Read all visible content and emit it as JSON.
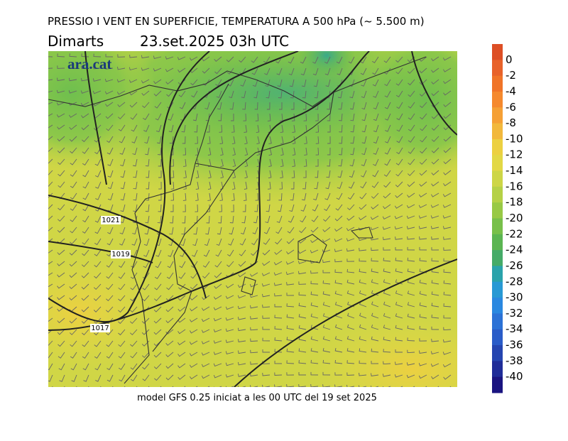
{
  "header": {
    "title": "PRESSIO I VENT EN SUPERFICIE, TEMPERATURA A 500 hPa (~ 5.500 m)",
    "day": "Dimarts",
    "date": "23.set.2025 03h UTC"
  },
  "logo": "ara.cat",
  "isobars": [
    {
      "label": 1021
    },
    {
      "label": 1019
    },
    {
      "label": 1017
    }
  ],
  "footer": "model GFS 0.25 iniciat a les 00 UTC del 19 set 2025",
  "colorbar": {
    "ticks": [
      0,
      -2,
      -4,
      -6,
      -8,
      -10,
      -12,
      -14,
      -16,
      -18,
      -20,
      -22,
      -24,
      -26,
      -28,
      -30,
      -32,
      -34,
      -36,
      -38,
      -40
    ],
    "colors": [
      "#dd4f25",
      "#e8622a",
      "#f07428",
      "#f5892e",
      "#f5a035",
      "#f2b83c",
      "#ecd041",
      "#e2d845",
      "#cdd646",
      "#b5d146",
      "#98c945",
      "#78c04a",
      "#5bb552",
      "#45ab68",
      "#2aa3ab",
      "#2899d4",
      "#2a88e0",
      "#2c72d6",
      "#2a5cc8",
      "#2545b0",
      "#1f2c98",
      "#1a1480"
    ]
  }
}
